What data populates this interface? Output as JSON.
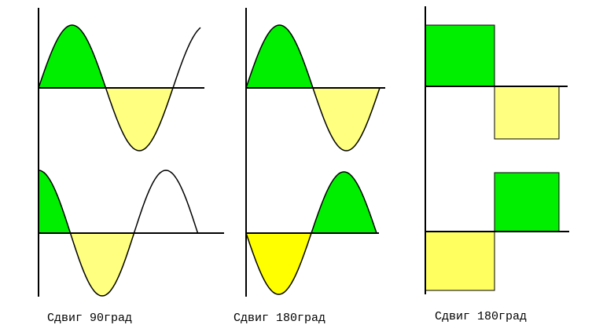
{
  "captions": [
    "Сдвиг 90град",
    "Сдвиг 180град",
    "Сдвиг 180град"
  ]
}
